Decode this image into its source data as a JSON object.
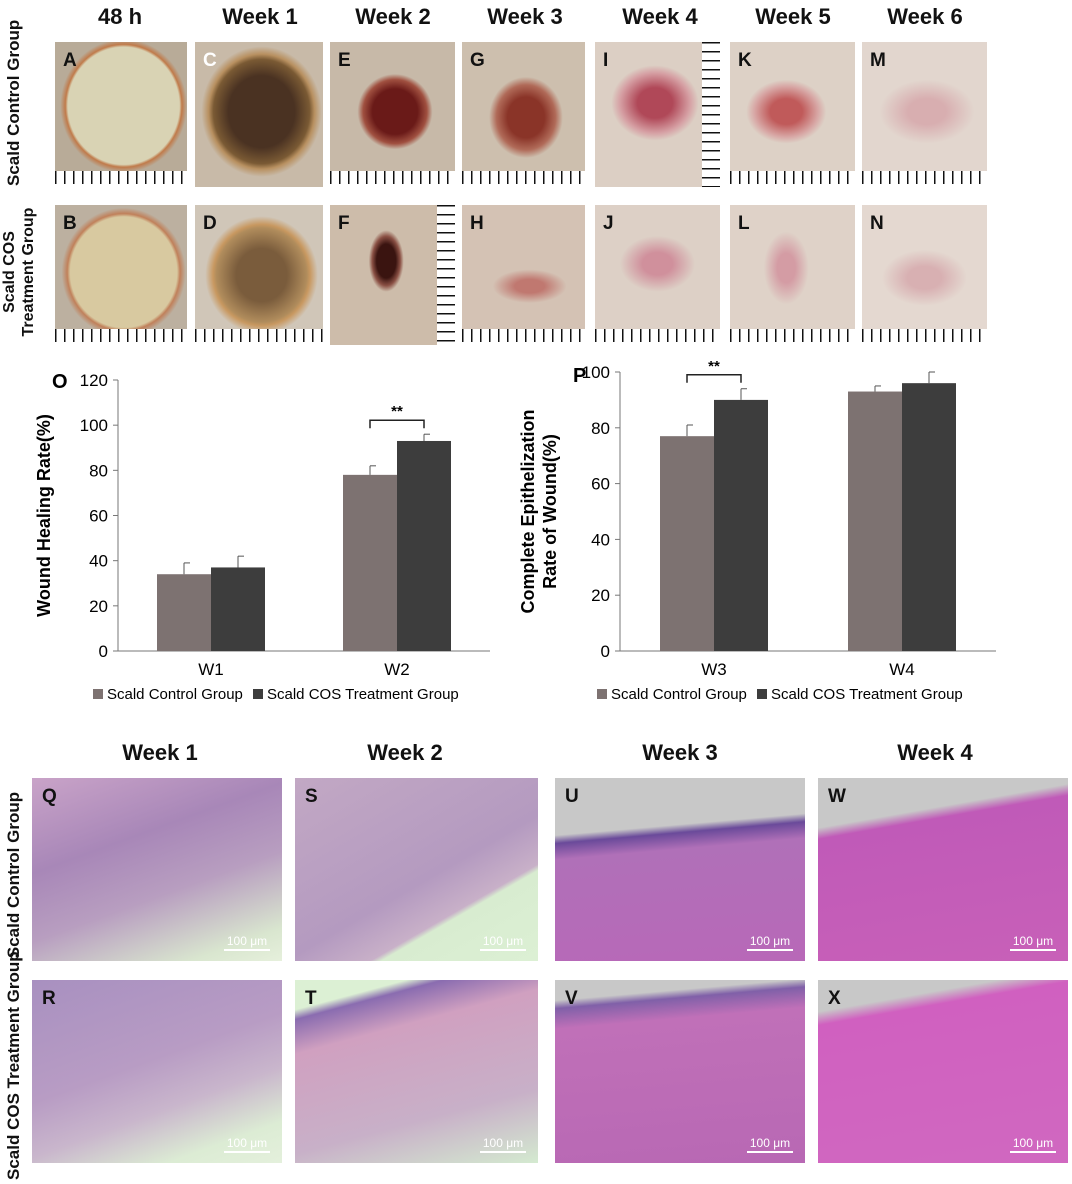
{
  "photo_panel": {
    "column_headers": [
      "48 h",
      "Week 1",
      "Week 2",
      "Week 3",
      "Week 4",
      "Week 5",
      "Week 6"
    ],
    "row_labels": [
      "Scald Control Group",
      "Scald COS Treatment Group"
    ],
    "top_letters": [
      "A",
      "C",
      "E",
      "G",
      "I",
      "K",
      "M"
    ],
    "bottom_letters": [
      "B",
      "D",
      "F",
      "H",
      "J",
      "L",
      "N"
    ]
  },
  "chart_data": [
    {
      "type": "bar",
      "panel_letter": "O",
      "categories": [
        "W1",
        "W2"
      ],
      "series": [
        {
          "name": "Scald Control Group",
          "values": [
            34,
            78
          ],
          "errors": [
            5,
            4
          ],
          "color": "#7d7271"
        },
        {
          "name": "Scald COS Treatment Group",
          "values": [
            37,
            93
          ],
          "errors": [
            5,
            3
          ],
          "color": "#3d3d3d"
        }
      ],
      "ylabel": "Wound Healing  Rate(%)",
      "ylim": [
        0,
        120
      ],
      "yticks": [
        "0",
        "20",
        "40",
        "60",
        "80",
        "100",
        "120"
      ],
      "significance": {
        "category": "W2",
        "label": "**"
      },
      "legend_position": "bottom"
    },
    {
      "type": "bar",
      "panel_letter": "P",
      "categories": [
        "W3",
        "W4"
      ],
      "series": [
        {
          "name": "Scald Control Group",
          "values": [
            77,
            93
          ],
          "errors": [
            4,
            2
          ],
          "color": "#7d7271"
        },
        {
          "name": "Scald COS Treatment Group",
          "values": [
            90,
            96
          ],
          "errors": [
            4,
            4
          ],
          "color": "#3d3d3d"
        }
      ],
      "ylabel_lines": [
        "Complete Epithelization",
        "Rate of Wound(%)"
      ],
      "ylim": [
        0,
        100
      ],
      "yticks": [
        "0",
        "20",
        "40",
        "60",
        "80",
        "100"
      ],
      "significance": {
        "category": "W3",
        "label": "**"
      },
      "legend_position": "bottom"
    }
  ],
  "histology_panel": {
    "column_headers": [
      "Week 1",
      "Week 2",
      "Week 3",
      "Week 4"
    ],
    "row_labels": [
      "Scald Control Group",
      "Scald COS Treatment Group"
    ],
    "top_letters": [
      "Q",
      "S",
      "U",
      "W"
    ],
    "bottom_letters": [
      "R",
      "T",
      "V",
      "X"
    ],
    "scale_label": "100 μm"
  },
  "colors": {
    "control": "#7d7271",
    "treatment": "#3d3d3d"
  }
}
